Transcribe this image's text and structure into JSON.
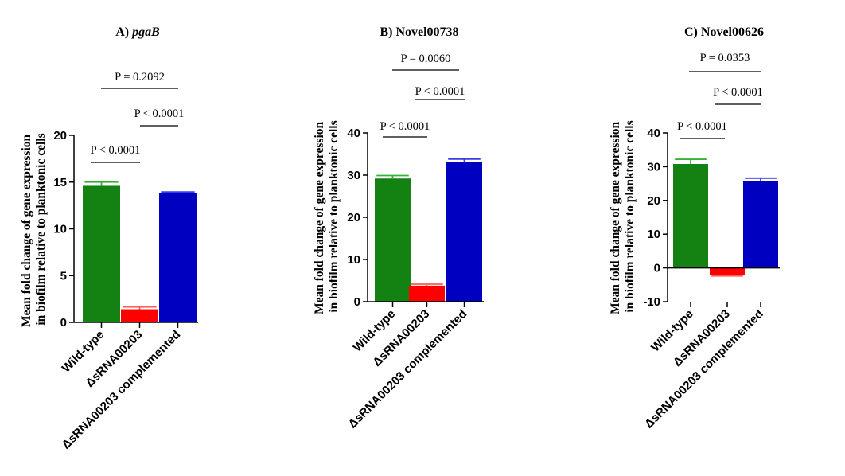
{
  "colors": {
    "wild_type": "#138213",
    "deletion": "#ff0000",
    "complemented": "#0000c0",
    "wild_type_err": "#36b336",
    "deletion_err": "#ff5a5a",
    "complemented_err": "#3a3ae8"
  },
  "chart_data": [
    {
      "type": "bar",
      "panel_label": "A)",
      "title": "pgaB",
      "title_italic": true,
      "ylabel": [
        "Mean fold change of gene expression",
        "in biofilm relative to planktonic cells"
      ],
      "xlabel": "",
      "categories": [
        "Wild-type",
        "ΔsRNA00203",
        "ΔsRNA00203 complemented"
      ],
      "values": [
        14.6,
        1.4,
        13.8
      ],
      "errors": [
        0.4,
        0.25,
        0.15
      ],
      "ylim": [
        0,
        20
      ],
      "yticks": [
        0,
        5,
        10,
        15,
        20
      ],
      "grid": false,
      "annotations": [
        {
          "text": "P < 0.0001",
          "from": 0,
          "to": 1
        },
        {
          "text": "P < 0.0001",
          "from": 1,
          "to": 2
        },
        {
          "text": "P = 0.2092",
          "from": 0,
          "to": 2
        }
      ]
    },
    {
      "type": "bar",
      "panel_label": "B)",
      "title": "Novel00738",
      "title_italic": false,
      "ylabel": [
        "Mean fold change of gene expression",
        "in biofilm relative to planktonic cells"
      ],
      "xlabel": "",
      "categories": [
        "Wild-type",
        "ΔsRNA00203",
        "ΔsRNA00203 complemented"
      ],
      "values": [
        29.2,
        3.8,
        33.2
      ],
      "errors": [
        0.7,
        0.35,
        0.6
      ],
      "ylim": [
        0,
        40
      ],
      "yticks": [
        0,
        10,
        20,
        30,
        40
      ],
      "grid": false,
      "annotations": [
        {
          "text": "P < 0.0001",
          "from": 0,
          "to": 1
        },
        {
          "text": "P < 0.0001",
          "from": 1,
          "to": 2
        },
        {
          "text": "P = 0.0060",
          "from": 0,
          "to": 2
        }
      ]
    },
    {
      "type": "bar",
      "panel_label": "C)",
      "title": "Novel00626",
      "title_italic": false,
      "ylabel": [
        "Mean fold change of gene expression",
        "in biofilm relative to planktonic cells"
      ],
      "xlabel": "",
      "categories": [
        "Wild-type",
        "ΔsRNA00203",
        "ΔsRNA00203 complemented"
      ],
      "values": [
        30.8,
        -2.0,
        25.7
      ],
      "errors": [
        1.4,
        0.4,
        0.9
      ],
      "ylim": [
        -10,
        40
      ],
      "yticks": [
        -10,
        0,
        10,
        20,
        30,
        40
      ],
      "grid": false,
      "annotations": [
        {
          "text": "P < 0.0001",
          "from": 0,
          "to": 1
        },
        {
          "text": "P < 0.0001",
          "from": 1,
          "to": 2
        },
        {
          "text": "P = 0.0353",
          "from": 0,
          "to": 2
        }
      ]
    }
  ]
}
